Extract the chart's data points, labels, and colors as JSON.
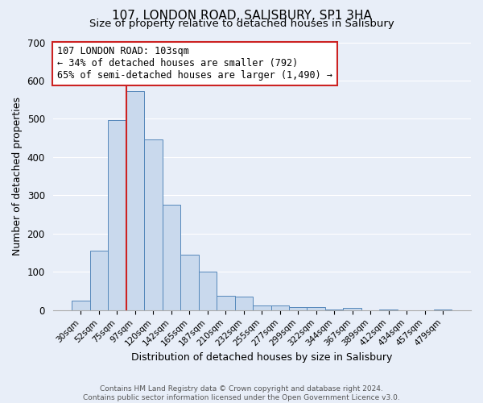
{
  "title": "107, LONDON ROAD, SALISBURY, SP1 3HA",
  "subtitle": "Size of property relative to detached houses in Salisbury",
  "xlabel": "Distribution of detached houses by size in Salisbury",
  "ylabel": "Number of detached properties",
  "bar_labels": [
    "30sqm",
    "52sqm",
    "75sqm",
    "97sqm",
    "120sqm",
    "142sqm",
    "165sqm",
    "187sqm",
    "210sqm",
    "232sqm",
    "255sqm",
    "277sqm",
    "299sqm",
    "322sqm",
    "344sqm",
    "367sqm",
    "389sqm",
    "412sqm",
    "434sqm",
    "457sqm",
    "479sqm"
  ],
  "bar_values": [
    25,
    155,
    497,
    573,
    447,
    275,
    145,
    100,
    37,
    35,
    13,
    13,
    8,
    8,
    2,
    5,
    0,
    2,
    0,
    0,
    2
  ],
  "bar_color": "#c9d9ed",
  "bar_edge_color": "#5588bb",
  "ylim": [
    0,
    700
  ],
  "yticks": [
    0,
    100,
    200,
    300,
    400,
    500,
    600,
    700
  ],
  "marker_bar_index": 3,
  "annotation_line1": "107 LONDON ROAD: 103sqm",
  "annotation_line2": "← 34% of detached houses are smaller (792)",
  "annotation_line3": "65% of semi-detached houses are larger (1,490) →",
  "annotation_box_color": "#ffffff",
  "annotation_box_edge": "#cc2222",
  "marker_line_color": "#cc2222",
  "title_fontsize": 11,
  "subtitle_fontsize": 9.5,
  "footer_text": "Contains HM Land Registry data © Crown copyright and database right 2024.\nContains public sector information licensed under the Open Government Licence v3.0.",
  "background_color": "#e8eef8",
  "plot_background": "#e8eef8",
  "grid_color": "#ffffff",
  "footer_color": "#555555"
}
